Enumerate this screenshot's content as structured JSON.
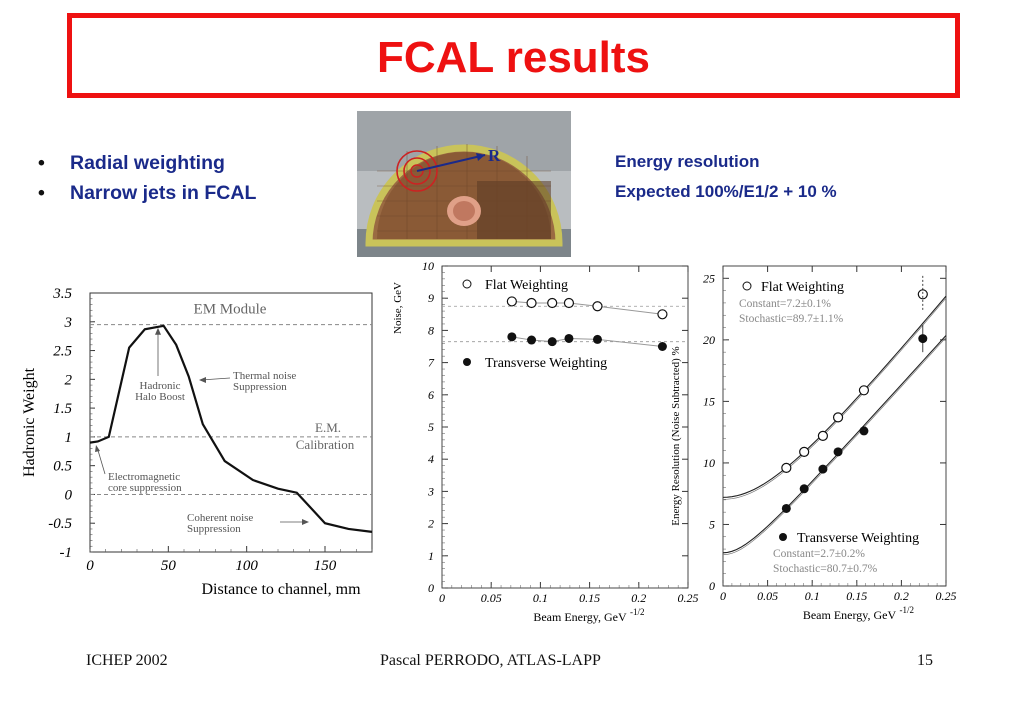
{
  "slide": {
    "title": "FCAL results",
    "bullets": [
      "Radial weighting",
      "Narrow jets in FCAL"
    ],
    "energy_resolution_title": "Energy resolution",
    "energy_resolution_expected": "Expected 100%/E1/2 + 10 %",
    "photo_label": "R",
    "footer": {
      "left": "ICHEP 2002",
      "center": "Pascal PERRODO, ATLAS-LAPP",
      "right": "15"
    }
  },
  "colors": {
    "title": "#ee1111",
    "bullet_text": "#1a2a8a",
    "arrow": "#1a2a8a",
    "ring": "#cc2222"
  },
  "chart_data": [
    {
      "type": "line",
      "xlabel": "Distance to channel, mm",
      "ylabel": "Hadronic Weight",
      "xlim": [
        0,
        180
      ],
      "ylim": [
        -1,
        3.5
      ],
      "xticks": [
        0,
        50,
        100,
        150
      ],
      "yticks": [
        3.5,
        3,
        2.5,
        2,
        1.5,
        1,
        0.5,
        0,
        -0.5,
        -1
      ],
      "x": [
        0,
        5,
        12,
        25,
        35,
        47,
        55,
        63,
        72,
        86,
        104,
        120,
        132,
        150,
        165,
        180
      ],
      "y": [
        0.9,
        0.92,
        1.0,
        2.55,
        2.87,
        2.93,
        2.6,
        2.05,
        1.22,
        0.58,
        0.25,
        0.1,
        0.03,
        -0.5,
        -0.6,
        -0.65
      ],
      "reference_lines": [
        {
          "y": 2.95,
          "label": "EM Module"
        },
        {
          "y": 1.0,
          "label": "E.M.\nCalibration"
        },
        {
          "y": 0.0,
          "label": ""
        }
      ],
      "annotations": [
        {
          "text": "Hadronic\nHalo Boost"
        },
        {
          "text": "Thermal noise\nSuppression"
        },
        {
          "text": "Electromagnetic\ncore suppression"
        },
        {
          "text": "Coherent noise\nSuppression"
        }
      ]
    },
    {
      "type": "scatter",
      "xlabel": "Beam Energy, GeV",
      "xlabel_exp": "-1/2",
      "ylabel": "Noise, GeV",
      "xlim": [
        0,
        0.25
      ],
      "ylim": [
        0,
        10
      ],
      "xticks": [
        0,
        0.05,
        0.1,
        0.15,
        0.2,
        0.25
      ],
      "yticks": [
        0,
        1,
        2,
        3,
        4,
        5,
        6,
        7,
        8,
        9,
        10
      ],
      "series": [
        {
          "name": "Flat Weighting",
          "marker": "open",
          "x": [
            0.071,
            0.091,
            0.112,
            0.129,
            0.158,
            0.224
          ],
          "y": [
            8.9,
            8.85,
            8.85,
            8.85,
            8.75,
            8.5
          ],
          "dashed_level": 8.75
        },
        {
          "name": "Transverse Weighting",
          "marker": "filled",
          "x": [
            0.071,
            0.091,
            0.112,
            0.129,
            0.158,
            0.224
          ],
          "y": [
            7.8,
            7.7,
            7.65,
            7.75,
            7.72,
            7.5
          ],
          "dashed_level": 7.65
        }
      ]
    },
    {
      "type": "scatter",
      "xlabel": "Beam Energy, GeV",
      "xlabel_exp": "-1/2",
      "ylabel": "Energy Resolution (Noise Subtracted) %",
      "xlim": [
        0,
        0.25
      ],
      "ylim": [
        0,
        26
      ],
      "xticks": [
        0,
        0.05,
        0.1,
        0.15,
        0.2,
        0.25
      ],
      "yticks": [
        0,
        5,
        10,
        15,
        20,
        25
      ],
      "series": [
        {
          "name": "Flat Weighting",
          "marker": "open",
          "constant_label": "Constant=7.2±0.1%",
          "stochastic_label": "Stochastic=89.7±1.1%",
          "constant": 7.2,
          "stochastic": 89.7,
          "x": [
            0.071,
            0.091,
            0.112,
            0.129,
            0.158,
            0.224
          ],
          "y": [
            9.6,
            10.9,
            12.2,
            13.7,
            15.9,
            23.7
          ]
        },
        {
          "name": "Transverse Weighting",
          "marker": "filled",
          "constant_label": "Constant=2.7±0.2%",
          "stochastic_label": "Stochastic=80.7±0.7%",
          "constant": 2.7,
          "stochastic": 80.7,
          "x": [
            0.071,
            0.091,
            0.112,
            0.129,
            0.158,
            0.224
          ],
          "y": [
            6.3,
            7.9,
            9.5,
            10.9,
            12.6,
            20.1
          ]
        }
      ]
    }
  ]
}
